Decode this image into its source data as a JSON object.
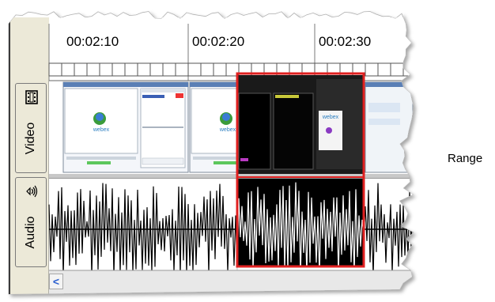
{
  "ruler": {
    "labels": [
      "00:02:10",
      "00:02:20",
      "00:02:30"
    ]
  },
  "tracks": {
    "video_label": "Video",
    "audio_label": "Audio",
    "video_icon": "film-icon",
    "audio_icon": "speaker-icon"
  },
  "selection": {
    "label": "Range",
    "color": "#e02020"
  },
  "scrollbar": {
    "left_arrow": "<"
  },
  "thumbnail_text": {
    "brand": "webex"
  }
}
